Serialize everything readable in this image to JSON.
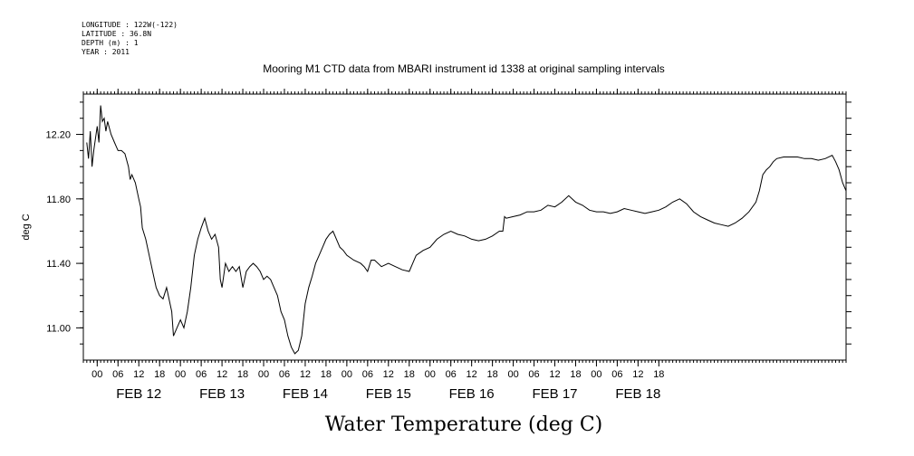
{
  "header": {
    "longitude": "LONGITUDE : 122W(-122)",
    "latitude": "LATITUDE : 36.8N",
    "depth": "DEPTH (m) : 1",
    "year": "YEAR : 2011"
  },
  "chart_data": {
    "type": "line",
    "title": "Mooring M1 CTD data from MBARI instrument id 1338 at original sampling intervals",
    "ylabel": "deg C",
    "xlabel": "Water Temperature (deg C)",
    "ylim": [
      10.8,
      12.45
    ],
    "xlim_hours": [
      -4,
      216
    ],
    "y_ticks": [
      11.0,
      11.4,
      11.8,
      12.2
    ],
    "y_tick_labels": [
      "11.00",
      "11.40",
      "11.80",
      "12.20"
    ],
    "x_hour_ticks": [
      "00",
      "06",
      "12",
      "18",
      "00",
      "06",
      "12",
      "18",
      "00",
      "06",
      "12",
      "18",
      "00",
      "06",
      "12",
      "18",
      "00",
      "06",
      "12",
      "18",
      "00",
      "06",
      "12",
      "18",
      "00",
      "06",
      "12",
      "18"
    ],
    "day_labels": [
      "FEB 12",
      "FEB 13",
      "FEB 14",
      "FEB 15",
      "FEB 16",
      "FEB 17",
      "FEB 18"
    ],
    "x_unit": "hours since FEB 12 00:00",
    "series": [
      {
        "values": [
          [
            -3,
            12.15
          ],
          [
            -2.5,
            12.05
          ],
          [
            -2,
            12.22
          ],
          [
            -1.5,
            12.0
          ],
          [
            -1,
            12.1
          ],
          [
            0,
            12.25
          ],
          [
            0.5,
            12.15
          ],
          [
            1,
            12.38
          ],
          [
            1.5,
            12.28
          ],
          [
            2,
            12.3
          ],
          [
            2.5,
            12.22
          ],
          [
            3,
            12.28
          ],
          [
            4,
            12.2
          ],
          [
            5,
            12.15
          ],
          [
            6,
            12.1
          ],
          [
            7,
            12.1
          ],
          [
            8,
            12.08
          ],
          [
            9,
            12.0
          ],
          [
            9.5,
            11.92
          ],
          [
            10,
            11.95
          ],
          [
            11,
            11.9
          ],
          [
            12,
            11.8
          ],
          [
            12.5,
            11.75
          ],
          [
            13,
            11.62
          ],
          [
            14,
            11.55
          ],
          [
            15,
            11.45
          ],
          [
            16,
            11.35
          ],
          [
            17,
            11.25
          ],
          [
            18,
            11.2
          ],
          [
            19,
            11.18
          ],
          [
            20,
            11.25
          ],
          [
            21,
            11.15
          ],
          [
            21.5,
            11.1
          ],
          [
            22,
            10.95
          ],
          [
            23,
            11.0
          ],
          [
            24,
            11.05
          ],
          [
            25,
            11.0
          ],
          [
            26,
            11.1
          ],
          [
            27,
            11.25
          ],
          [
            28,
            11.45
          ],
          [
            29,
            11.55
          ],
          [
            30,
            11.62
          ],
          [
            31,
            11.68
          ],
          [
            32,
            11.6
          ],
          [
            33,
            11.55
          ],
          [
            34,
            11.58
          ],
          [
            35,
            11.5
          ],
          [
            35.5,
            11.3
          ],
          [
            36,
            11.25
          ],
          [
            37,
            11.4
          ],
          [
            38,
            11.35
          ],
          [
            39,
            11.38
          ],
          [
            40,
            11.35
          ],
          [
            41,
            11.38
          ],
          [
            42,
            11.25
          ],
          [
            43,
            11.35
          ],
          [
            44,
            11.38
          ],
          [
            45,
            11.4
          ],
          [
            46,
            11.38
          ],
          [
            47,
            11.35
          ],
          [
            48,
            11.3
          ],
          [
            49,
            11.32
          ],
          [
            50,
            11.3
          ],
          [
            51,
            11.25
          ],
          [
            52,
            11.2
          ],
          [
            53,
            11.1
          ],
          [
            54,
            11.05
          ],
          [
            55,
            10.95
          ],
          [
            56,
            10.88
          ],
          [
            57,
            10.84
          ],
          [
            58,
            10.86
          ],
          [
            59,
            10.95
          ],
          [
            60,
            11.15
          ],
          [
            61,
            11.25
          ],
          [
            62,
            11.32
          ],
          [
            63,
            11.4
          ],
          [
            64,
            11.45
          ],
          [
            65,
            11.5
          ],
          [
            66,
            11.55
          ],
          [
            67,
            11.58
          ],
          [
            68,
            11.6
          ],
          [
            69,
            11.55
          ],
          [
            70,
            11.5
          ],
          [
            71,
            11.48
          ],
          [
            72,
            11.45
          ],
          [
            74,
            11.42
          ],
          [
            76,
            11.4
          ],
          [
            77,
            11.38
          ],
          [
            78,
            11.35
          ],
          [
            79,
            11.42
          ],
          [
            80,
            11.42
          ],
          [
            82,
            11.38
          ],
          [
            84,
            11.4
          ],
          [
            86,
            11.38
          ],
          [
            88,
            11.36
          ],
          [
            90,
            11.35
          ],
          [
            91,
            11.4
          ],
          [
            92,
            11.45
          ],
          [
            94,
            11.48
          ],
          [
            96,
            11.5
          ],
          [
            98,
            11.55
          ],
          [
            100,
            11.58
          ],
          [
            102,
            11.6
          ],
          [
            104,
            11.58
          ],
          [
            106,
            11.57
          ],
          [
            108,
            11.55
          ],
          [
            110,
            11.54
          ],
          [
            112,
            11.55
          ],
          [
            114,
            11.57
          ],
          [
            116,
            11.6
          ],
          [
            117,
            11.6
          ],
          [
            117.5,
            11.69
          ],
          [
            118,
            11.68
          ],
          [
            120,
            11.69
          ],
          [
            122,
            11.7
          ],
          [
            124,
            11.72
          ],
          [
            126,
            11.72
          ],
          [
            128,
            11.73
          ],
          [
            130,
            11.76
          ],
          [
            132,
            11.75
          ],
          [
            134,
            11.78
          ],
          [
            136,
            11.82
          ],
          [
            138,
            11.78
          ],
          [
            140,
            11.76
          ],
          [
            142,
            11.73
          ],
          [
            144,
            11.72
          ],
          [
            146,
            11.72
          ],
          [
            148,
            11.71
          ],
          [
            150,
            11.72
          ],
          [
            152,
            11.74
          ],
          [
            154,
            11.73
          ],
          [
            156,
            11.72
          ],
          [
            158,
            11.71
          ],
          [
            160,
            11.72
          ],
          [
            162,
            11.73
          ],
          [
            164,
            11.75
          ],
          [
            166,
            11.78
          ],
          [
            168,
            11.8
          ],
          [
            170,
            11.77
          ],
          [
            172,
            11.72
          ],
          [
            174,
            11.69
          ],
          [
            176,
            11.67
          ],
          [
            178,
            11.65
          ],
          [
            180,
            11.64
          ],
          [
            182,
            11.63
          ],
          [
            184,
            11.65
          ],
          [
            186,
            11.68
          ],
          [
            188,
            11.72
          ],
          [
            190,
            11.78
          ],
          [
            191,
            11.85
          ],
          [
            192,
            11.95
          ],
          [
            193,
            11.98
          ],
          [
            194,
            12.0
          ],
          [
            195,
            12.03
          ],
          [
            196,
            12.05
          ],
          [
            198,
            12.06
          ],
          [
            200,
            12.06
          ],
          [
            202,
            12.06
          ],
          [
            204,
            12.05
          ],
          [
            206,
            12.05
          ],
          [
            208,
            12.04
          ],
          [
            210,
            12.05
          ],
          [
            212,
            12.07
          ],
          [
            213,
            12.03
          ],
          [
            214,
            11.98
          ],
          [
            215,
            11.9
          ],
          [
            216,
            11.85
          ]
        ]
      }
    ]
  }
}
